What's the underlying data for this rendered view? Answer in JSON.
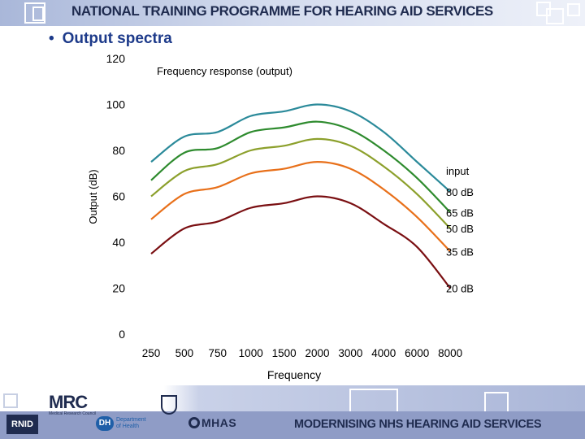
{
  "header": {
    "title": "NATIONAL TRAINING PROGRAMME FOR  HEARING AID SERVICES"
  },
  "slide": {
    "bullet": "•",
    "heading": "Output spectra"
  },
  "chart_data": {
    "type": "line",
    "title": "Frequency response (output)",
    "xlabel": "Frequency",
    "ylabel": "Output (dB)",
    "ylim": [
      0,
      120
    ],
    "yticks": [
      0,
      20,
      40,
      60,
      80,
      100,
      120
    ],
    "categories": [
      "250",
      "500",
      "750",
      "1000",
      "1500",
      "2000",
      "3000",
      "4000",
      "6000",
      "8000"
    ],
    "legend_title": "input",
    "series": [
      {
        "name": "80 dB",
        "color": "#2b8a9a",
        "values": [
          75,
          86,
          88,
          95,
          97,
          100,
          97,
          88,
          75,
          62
        ]
      },
      {
        "name": "65 dB",
        "color": "#2e8b2e",
        "values": [
          67,
          79,
          81,
          88,
          90,
          92.5,
          89,
          80,
          68,
          53
        ]
      },
      {
        "name": "50 dB",
        "color": "#8ca02c",
        "values": [
          60,
          71,
          74,
          80,
          82,
          85,
          82,
          73,
          61,
          46
        ]
      },
      {
        "name": "35 dB",
        "color": "#e8701a",
        "values": [
          50,
          61,
          64,
          70,
          72,
          75,
          72,
          63,
          51,
          36
        ]
      },
      {
        "name": "20 dB",
        "color": "#7a0f12",
        "values": [
          35,
          46,
          49,
          55,
          57,
          60,
          57,
          48,
          38,
          20
        ]
      }
    ]
  },
  "footer": {
    "title": "MODERNISING NHS HEARING AID SERVICES",
    "logos": {
      "rnid": "RNID",
      "mrc": "MRC",
      "mrc_sub": "Medical Research Council",
      "dh": "DH",
      "dh_sub": "Department of Health",
      "mhas": "MHAS"
    }
  },
  "colors": {
    "banner": "#a9b7d9",
    "heading": "#1d3a8a",
    "footer_bar": "#8f9cc6"
  }
}
